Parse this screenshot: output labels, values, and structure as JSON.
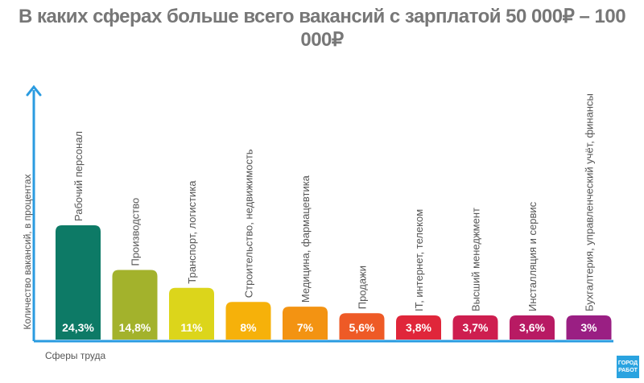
{
  "title": "В каких сферах больше всего вакансий с зарплатой 50 000₽ – 100 000₽",
  "logo": {
    "line1": "ГОРОД",
    "line2": "РАБОТ"
  },
  "chart_data": {
    "type": "bar",
    "title": "В каких сферах больше всего вакансий с зарплатой 50 000₽ – 100 000₽",
    "xlabel": "Сферы труда",
    "ylabel": "Количество вакансий, в процентах",
    "categories": [
      "Рабочий персонал",
      "Производство",
      "Транспорт, логистика",
      "Строительство, недвижимость",
      "Медицина, фармацевтика",
      "Продажи",
      "IT, интернет, телеком",
      "Высший менеджмент",
      "Инсталляция и сервис",
      "Бухгалтерия, управленческий учёт, финансы"
    ],
    "values": [
      24.3,
      14.8,
      11,
      8,
      7,
      5.6,
      3.8,
      3.7,
      3.6,
      3
    ],
    "value_labels": [
      "24,3%",
      "14,8%",
      "11%",
      "8%",
      "7%",
      "5,6%",
      "3,8%",
      "3,7%",
      "3,6%",
      "3%"
    ],
    "colors": [
      "#0d7a66",
      "#a3b22c",
      "#dcd51b",
      "#f6b10a",
      "#f39312",
      "#ee5a26",
      "#e0263a",
      "#ce1e4f",
      "#b81a63",
      "#9a1f83"
    ],
    "axis_color": "#2a9be0",
    "grid": false
  }
}
